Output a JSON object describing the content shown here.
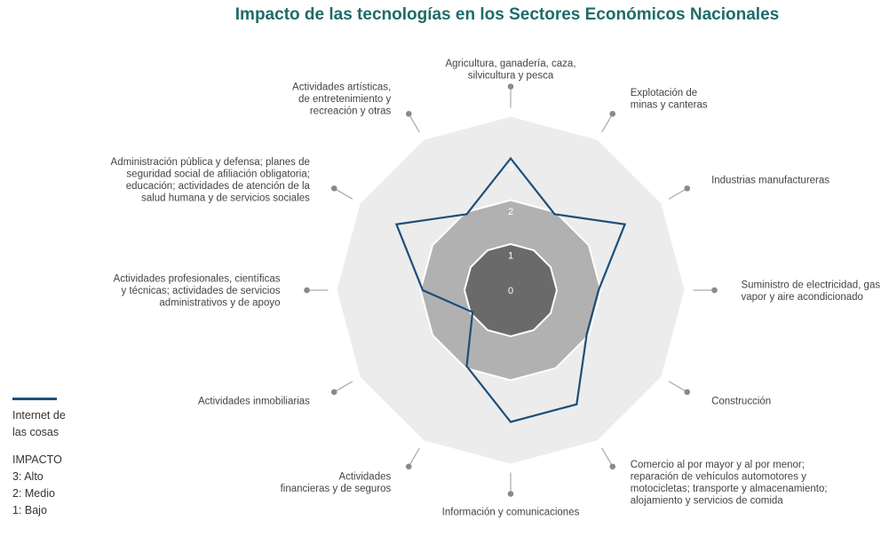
{
  "chart_data": {
    "type": "radar",
    "title": "Impacto de las tecnologías en los Sectores Económicos Nacionales",
    "categories": [
      [
        "Agricultura, ganadería, caza,",
        "silvicultura y pesca"
      ],
      [
        "Explotación de",
        "minas y canteras"
      ],
      [
        "Industrias manufactureras"
      ],
      [
        "Suministro de electricidad, gas,",
        "vapor y aire acondicionado"
      ],
      [
        "Construcción"
      ],
      [
        "Comercio al por mayor y al por menor;",
        "reparación de vehículos automotores y",
        "motocicletas; transporte y almacenamiento;",
        "alojamiento y servicios de comida"
      ],
      [
        "Información y comunicaciones"
      ],
      [
        "Actividades",
        "financieras y de seguros"
      ],
      [
        "Actividades inmobiliarias"
      ],
      [
        "Actividades profesionales, científicas",
        "y técnicas; actividades de servicios",
        "administrativos y de apoyo"
      ],
      [
        "Administración pública y defensa; planes de",
        "seguridad social de afiliación obligatoria;",
        "educación; actividades de atención de la",
        "salud humana y de servicios sociales"
      ],
      [
        "Actividades artísticas,",
        "de entretenimiento y",
        "recreación y otras"
      ]
    ],
    "scale_ticks": [
      "0",
      "1",
      "2",
      "3"
    ],
    "rmax": 3,
    "series": [
      {
        "name": "Internet de las cosas",
        "color": "#1d4e7a",
        "values": [
          3,
          2,
          3,
          2,
          2,
          3,
          3,
          2,
          1,
          2,
          3,
          2
        ]
      }
    ],
    "band_colors": [
      "#ececec",
      "#b1b1b1",
      "#6a6a6a"
    ]
  },
  "legend": {
    "series_label_line1": "Internet de",
    "series_label_line2": "las cosas",
    "impact_title": "IMPACTO",
    "impact_high": "3: Alto",
    "impact_mid": "2: Medio",
    "impact_low": "1: Bajo"
  }
}
